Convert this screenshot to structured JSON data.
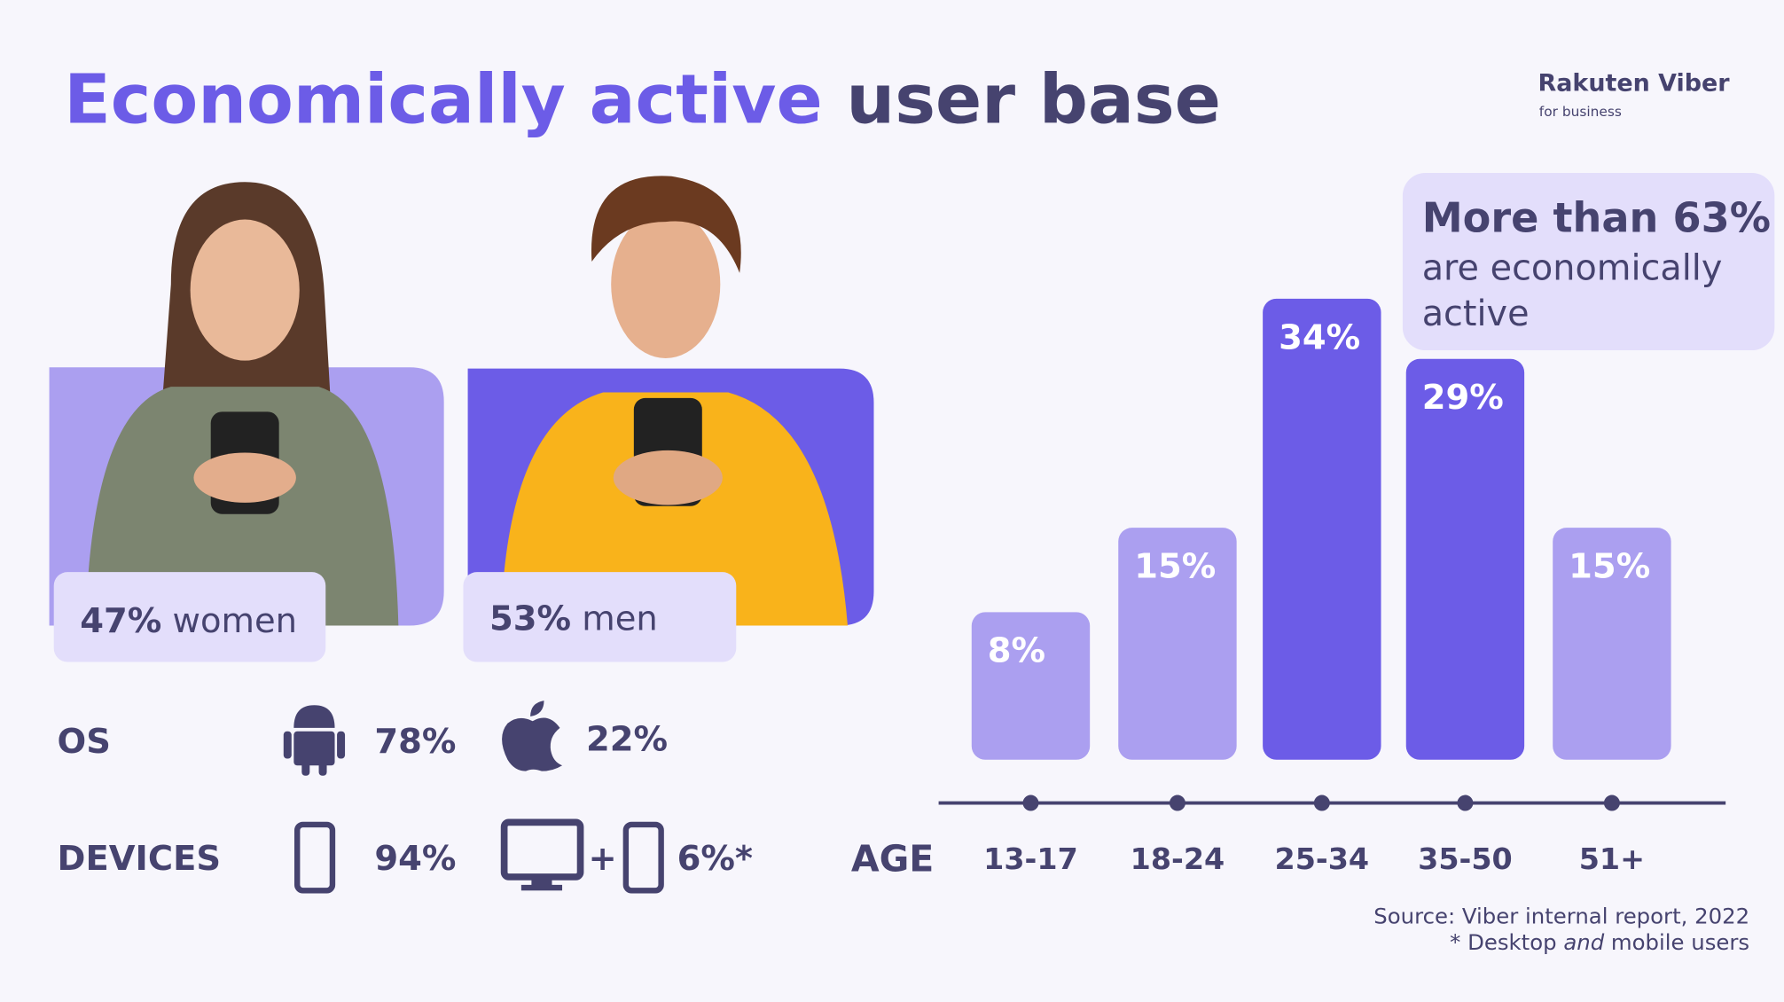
{
  "header": {
    "title_highlight": "Economically active",
    "title_rest": "user base",
    "logo": "Rakuten Viber",
    "logo_sub": "for business"
  },
  "callout": {
    "headline": "More than 63%",
    "lines": [
      "are economically",
      "active"
    ]
  },
  "women": {
    "share": "47%",
    "label": "women"
  },
  "men": {
    "share": "53%",
    "label": "men"
  },
  "os": {
    "label": "OS",
    "android": "78%",
    "apple": "22%"
  },
  "devices": {
    "label": "DEVICES",
    "mobile": "94%",
    "plus": "+",
    "desktop_and_mobile": "6%*"
  },
  "chart_data": {
    "type": "bar",
    "axis_label": "AGE",
    "categories": [
      "13-17",
      "18-24",
      "25-34",
      "35-50",
      "51+"
    ],
    "values": [
      8,
      15,
      34,
      29,
      15
    ],
    "value_labels": [
      "8%",
      "15%",
      "34%",
      "29%",
      "15%"
    ],
    "colors": [
      "#ab9ff0",
      "#ab9ff0",
      "#6c5ce7",
      "#6c5ce7",
      "#ab9ff0"
    ]
  },
  "source": {
    "line1": "Source: Viber internal report, 2022",
    "line2_start": "* Desktop",
    "line2_italic": "and",
    "line2_end": "mobile users"
  }
}
